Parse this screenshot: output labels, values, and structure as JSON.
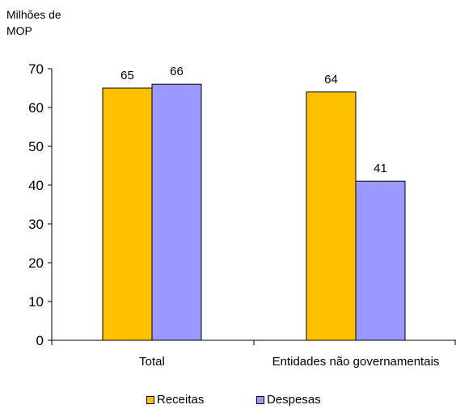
{
  "chart_data": {
    "type": "bar",
    "ylabel_lines": [
      "Milhões de",
      "MOP"
    ],
    "categories": [
      "Total",
      "Entidades não governamentais"
    ],
    "series": [
      {
        "name": "Receitas",
        "values": [
          65,
          64
        ],
        "labels": [
          "65",
          "64"
        ],
        "color": "#FFC000"
      },
      {
        "name": "Despesas",
        "values": [
          66,
          41
        ],
        "labels": [
          "66",
          "41"
        ],
        "color": "#9999FF"
      }
    ],
    "ylim": [
      0,
      70
    ],
    "yticks": [
      "0",
      "10",
      "20",
      "30",
      "40",
      "50",
      "60",
      "70"
    ],
    "legend_position": "bottom",
    "grid": false
  }
}
